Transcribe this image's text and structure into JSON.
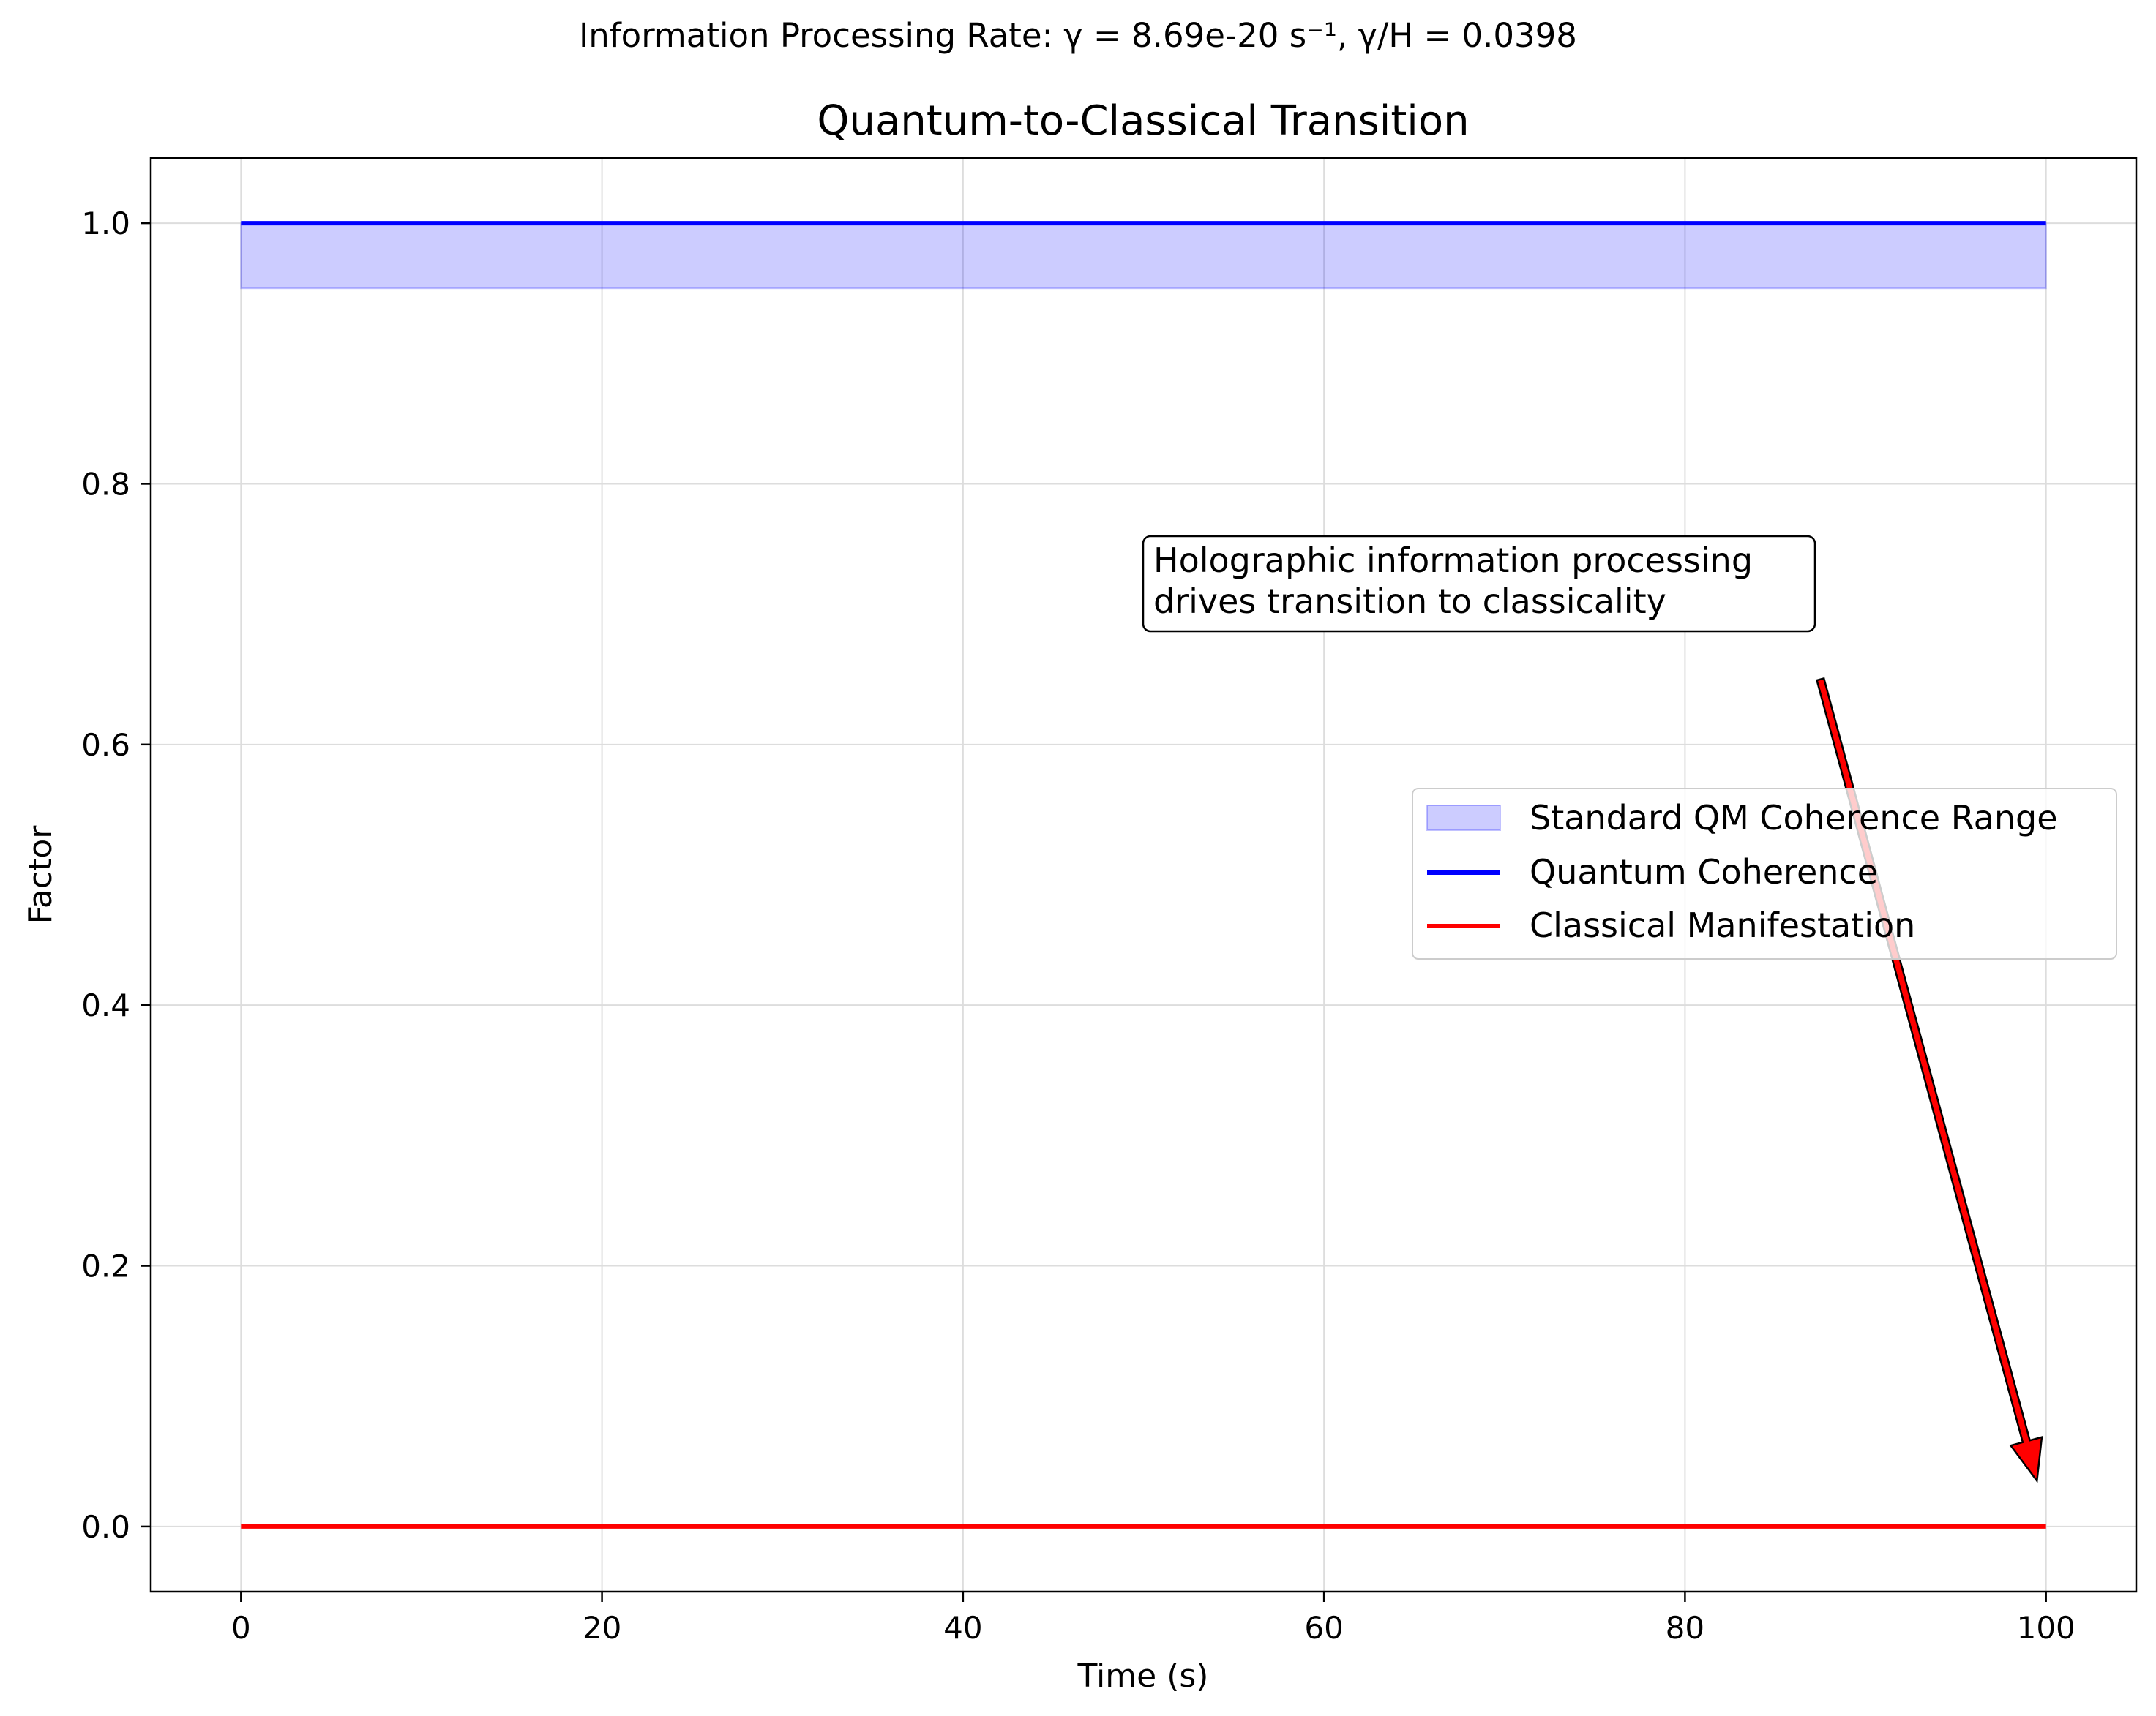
{
  "suptitle": "Information Processing Rate: γ = 8.69e-20 s⁻¹, γ/H = 0.0398",
  "chart_data": {
    "type": "line",
    "title": "Quantum-to-Classical Transition",
    "xlabel": "Time (s)",
    "ylabel": "Factor",
    "xlim": [
      -5,
      105
    ],
    "ylim": [
      -0.05,
      1.05
    ],
    "xticks": [
      0,
      20,
      40,
      60,
      80,
      100
    ],
    "yticks": [
      0.0,
      0.2,
      0.4,
      0.6,
      0.8,
      1.0
    ],
    "xtick_labels": [
      "0",
      "20",
      "40",
      "60",
      "80",
      "100"
    ],
    "ytick_labels": [
      "0.0",
      "0.2",
      "0.4",
      "0.6",
      "0.8",
      "1.0"
    ],
    "grid": true,
    "legend_position": "center-right",
    "band": {
      "name": "Standard QM Coherence Range",
      "x": [
        0,
        100
      ],
      "y_low": 0.95,
      "y_high": 1.0,
      "color": "#0000ff",
      "opacity": 0.2
    },
    "series": [
      {
        "name": "Quantum Coherence",
        "x": [
          0,
          100
        ],
        "y": [
          1.0,
          1.0
        ],
        "color": "#0000ff"
      },
      {
        "name": "Classical Manifestation",
        "x": [
          0,
          100
        ],
        "y": [
          0.0,
          0.0
        ],
        "color": "#ff0000"
      }
    ],
    "annotation": {
      "lines": [
        "Holographic information processing",
        "drives transition to classicality"
      ],
      "text_xy": [
        50,
        0.75
      ],
      "arrow_from": [
        87.5,
        0.65
      ],
      "arrow_to": [
        99.5,
        0.035
      ],
      "arrow_color": "#ff0000"
    }
  }
}
